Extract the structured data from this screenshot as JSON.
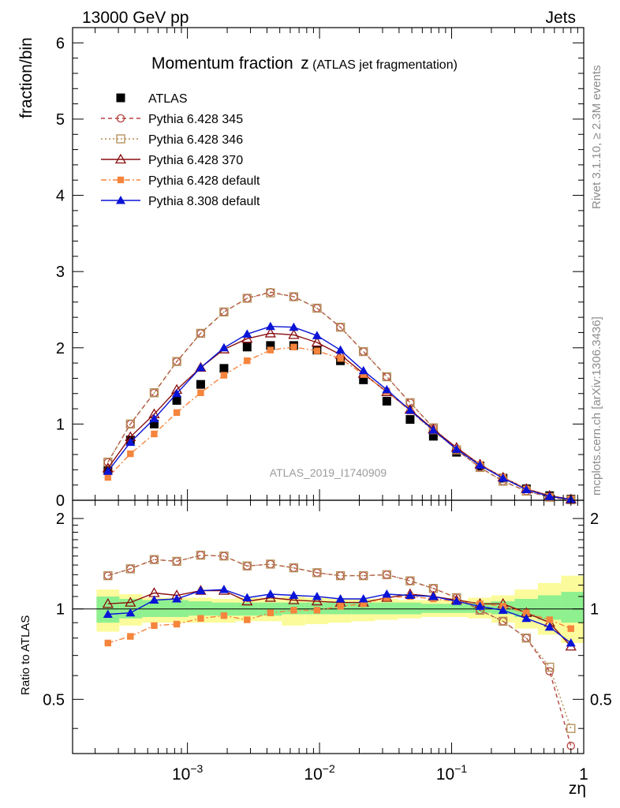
{
  "header": {
    "left": "13000 GeV pp",
    "right": "Jets"
  },
  "side_text": {
    "top": "Rivet 3.1.10, ≥ 2.3M events",
    "bottom": "mcplots.cern.ch [arXiv:1306.3436]"
  },
  "chart_data": {
    "type": "line",
    "title": "Momentum fraction",
    "title_symbol": "z",
    "subtitle": "(ATLAS jet fragmentation)",
    "watermark": "ATLAS_2019_I1740909",
    "xlabel": "zη",
    "ylabel": "fraction/bin",
    "ratio_ylabel": "Ratio to ATLAS",
    "x_scale": "log",
    "xlim": [
      0.000135,
      1.0
    ],
    "ylim": [
      0,
      6.2
    ],
    "ratio_ylim": [
      0.33,
      2.3
    ],
    "ratio_scale": "log",
    "x_ticks": [
      {
        "v": 0.001,
        "base": "10",
        "exp": "−3"
      },
      {
        "v": 0.01,
        "base": "10",
        "exp": "−2"
      },
      {
        "v": 0.1,
        "base": "10",
        "exp": "−1"
      },
      {
        "v": 1,
        "base": "1",
        "exp": ""
      }
    ],
    "y_ticks": [
      {
        "v": 0,
        "label": "0"
      },
      {
        "v": 1,
        "label": "1"
      },
      {
        "v": 2,
        "label": "2"
      },
      {
        "v": 3,
        "label": "3"
      },
      {
        "v": 4,
        "label": "4"
      },
      {
        "v": 5,
        "label": "5"
      },
      {
        "v": 6,
        "label": "6"
      }
    ],
    "ratio_ticks": [
      {
        "v": 0.5,
        "label": "0.5"
      },
      {
        "v": 1,
        "label": "1"
      },
      {
        "v": 2,
        "label": "2"
      }
    ],
    "legend_position": "top-left",
    "x": [
      0.00025,
      0.00037,
      0.00056,
      0.00083,
      0.00126,
      0.00189,
      0.00283,
      0.00425,
      0.00638,
      0.00957,
      0.0144,
      0.0215,
      0.0323,
      0.0485,
      0.0727,
      0.109,
      0.164,
      0.245,
      0.368,
      0.552,
      0.8
    ],
    "data": {
      "name": "ATLAS",
      "values": [
        0.39,
        0.79,
        1.0,
        1.31,
        1.52,
        1.73,
        2.01,
        2.03,
        2.03,
        1.97,
        1.83,
        1.58,
        1.3,
        1.06,
        0.84,
        0.63,
        0.45,
        0.29,
        0.15,
        0.06,
        0.015
      ]
    },
    "series": [
      {
        "name": "Pythia 6.428 345",
        "color": "#b5443f",
        "dash": "5,4",
        "marker": "circle-open",
        "values": [
          0.5,
          1.0,
          1.41,
          1.82,
          2.19,
          2.47,
          2.65,
          2.73,
          2.67,
          2.52,
          2.27,
          1.95,
          1.62,
          1.28,
          0.95,
          0.66,
          0.43,
          0.25,
          0.12,
          0.04,
          0.005
        ],
        "ratio": [
          1.29,
          1.36,
          1.46,
          1.44,
          1.51,
          1.5,
          1.39,
          1.41,
          1.37,
          1.32,
          1.29,
          1.29,
          1.3,
          1.24,
          1.17,
          1.09,
          0.99,
          0.91,
          0.8,
          0.62,
          0.35
        ]
      },
      {
        "name": "Pythia 6.428 346",
        "color": "#b08a52",
        "dash": "2,3",
        "marker": "square-open",
        "values": [
          0.5,
          1.0,
          1.41,
          1.82,
          2.19,
          2.47,
          2.65,
          2.72,
          2.67,
          2.52,
          2.27,
          1.95,
          1.62,
          1.28,
          0.95,
          0.66,
          0.43,
          0.25,
          0.12,
          0.04,
          0.006
        ],
        "ratio": [
          1.29,
          1.36,
          1.46,
          1.44,
          1.51,
          1.5,
          1.39,
          1.41,
          1.37,
          1.32,
          1.29,
          1.29,
          1.3,
          1.24,
          1.17,
          1.09,
          0.99,
          0.91,
          0.8,
          0.64,
          0.4
        ]
      },
      {
        "name": "Pythia 6.428 370",
        "color": "#8a0f10",
        "dash": "",
        "marker": "triangle-open",
        "values": [
          0.42,
          0.83,
          1.13,
          1.45,
          1.74,
          1.98,
          2.12,
          2.19,
          2.17,
          2.07,
          1.91,
          1.66,
          1.42,
          1.19,
          0.93,
          0.69,
          0.47,
          0.3,
          0.15,
          0.06,
          0.012
        ],
        "ratio": [
          1.04,
          1.05,
          1.13,
          1.11,
          1.15,
          1.15,
          1.06,
          1.09,
          1.07,
          1.06,
          1.05,
          1.05,
          1.09,
          1.12,
          1.1,
          1.07,
          1.04,
          1.04,
          0.97,
          0.9,
          0.75
        ]
      },
      {
        "name": "Pythia 6.428 default",
        "color": "#f5843c",
        "dash": "7,3,2,3",
        "marker": "square-filled",
        "values": [
          0.3,
          0.61,
          0.87,
          1.15,
          1.41,
          1.64,
          1.83,
          1.97,
          2.01,
          1.96,
          1.86,
          1.65,
          1.43,
          1.17,
          0.91,
          0.67,
          0.47,
          0.3,
          0.15,
          0.05,
          0.013
        ],
        "ratio": [
          0.77,
          0.81,
          0.88,
          0.89,
          0.93,
          0.95,
          0.92,
          0.97,
          0.99,
          0.99,
          1.02,
          1.04,
          1.09,
          1.1,
          1.08,
          1.06,
          1.04,
          1.02,
          0.97,
          0.92,
          0.86
        ]
      },
      {
        "name": "Pythia 8.308 default",
        "color": "#0a14d6",
        "dash": "",
        "marker": "triangle-filled",
        "values": [
          0.38,
          0.76,
          1.07,
          1.4,
          1.74,
          2.0,
          2.18,
          2.28,
          2.27,
          2.16,
          1.97,
          1.7,
          1.45,
          1.18,
          0.92,
          0.67,
          0.46,
          0.29,
          0.14,
          0.05,
          0.012
        ],
        "ratio": [
          0.96,
          0.97,
          1.07,
          1.08,
          1.15,
          1.16,
          1.09,
          1.12,
          1.11,
          1.1,
          1.08,
          1.08,
          1.12,
          1.11,
          1.1,
          1.06,
          1.02,
          0.99,
          0.93,
          0.87,
          0.77
        ]
      }
    ],
    "bands": {
      "x_edges": [
        0.000205,
        0.000305,
        0.000455,
        0.00068,
        0.00102,
        0.00153,
        0.0023,
        0.00345,
        0.00518,
        0.00778,
        0.0117,
        0.0175,
        0.0263,
        0.0395,
        0.0592,
        0.0888,
        0.133,
        0.2,
        0.3,
        0.45,
        0.675,
        1.0
      ],
      "green": {
        "color": "#8ff08f",
        "lo": [
          0.9,
          0.93,
          0.94,
          0.94,
          0.95,
          0.95,
          0.95,
          0.95,
          0.96,
          0.96,
          0.96,
          0.96,
          0.96,
          0.96,
          0.97,
          0.97,
          0.97,
          0.96,
          0.94,
          0.92,
          0.9
        ],
        "hi": [
          1.1,
          1.08,
          1.07,
          1.07,
          1.06,
          1.05,
          1.05,
          1.05,
          1.05,
          1.05,
          1.05,
          1.05,
          1.05,
          1.05,
          1.04,
          1.04,
          1.05,
          1.06,
          1.08,
          1.11,
          1.14
        ]
      },
      "yellow": {
        "color": "#fbfb9b",
        "lo": [
          0.84,
          0.88,
          0.9,
          0.9,
          0.9,
          0.9,
          0.91,
          0.91,
          0.88,
          0.89,
          0.9,
          0.91,
          0.92,
          0.93,
          0.94,
          0.94,
          0.93,
          0.9,
          0.86,
          0.82,
          0.77
        ],
        "hi": [
          1.16,
          1.12,
          1.09,
          1.09,
          1.09,
          1.08,
          1.09,
          1.09,
          1.1,
          1.09,
          1.08,
          1.08,
          1.08,
          1.07,
          1.07,
          1.07,
          1.09,
          1.11,
          1.16,
          1.22,
          1.29
        ]
      }
    }
  }
}
